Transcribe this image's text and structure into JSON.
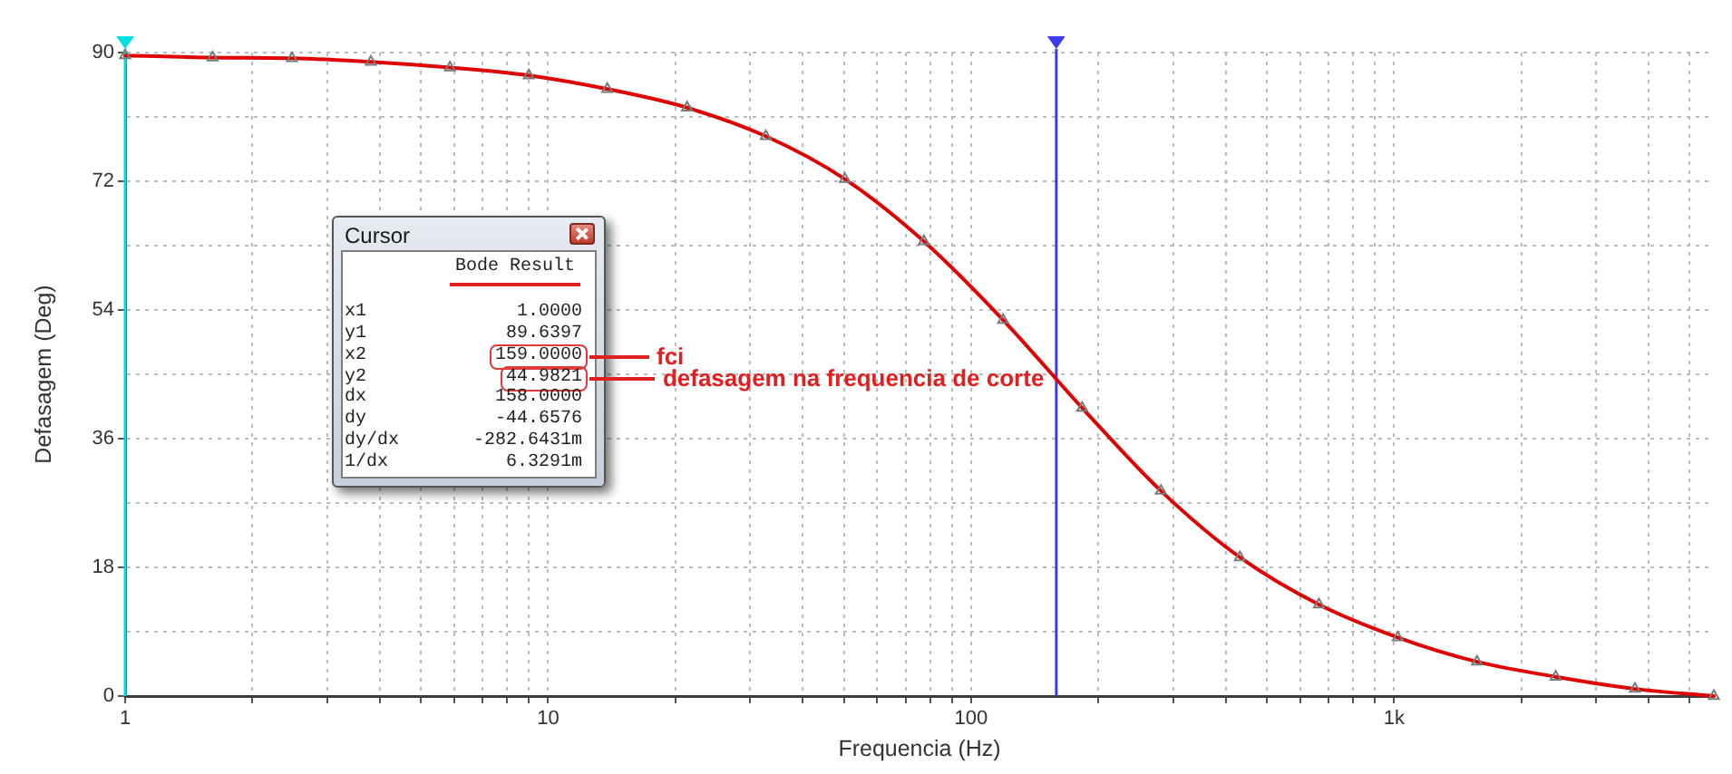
{
  "chart_data": {
    "type": "line",
    "xlabel": "Frequencia (Hz)",
    "ylabel": "Defasagem (Deg)",
    "log": "x",
    "xlim": [
      1,
      5700
    ],
    "ylim": [
      0,
      90
    ],
    "xticks": [
      1,
      {
        "value": 2,
        "label": null
      },
      {
        "value": 3,
        "label": null
      },
      {
        "value": 4,
        "label": null
      },
      {
        "value": 5,
        "label": null
      },
      {
        "value": 6,
        "label": null
      },
      {
        "value": 7,
        "label": null
      },
      {
        "value": 8,
        "label": null
      },
      {
        "value": 9,
        "label": null
      },
      10,
      {
        "value": 20,
        "label": null
      },
      {
        "value": 30,
        "label": null
      },
      {
        "value": 40,
        "label": null
      },
      {
        "value": 50,
        "label": null
      },
      {
        "value": 60,
        "label": null
      },
      {
        "value": 70,
        "label": null
      },
      {
        "value": 80,
        "label": null
      },
      {
        "value": 90,
        "label": null
      },
      100,
      {
        "value": 200,
        "label": null
      },
      {
        "value": 300,
        "label": null
      },
      {
        "value": 400,
        "label": null
      },
      {
        "value": 500,
        "label": null
      },
      {
        "value": 600,
        "label": null
      },
      {
        "value": 700,
        "label": null
      },
      {
        "value": 800,
        "label": null
      },
      {
        "value": 900,
        "label": null
      },
      {
        "value": 1000,
        "label": "1k"
      },
      {
        "value": 2000,
        "label": null
      },
      {
        "value": 3000,
        "label": null
      },
      {
        "value": 4000,
        "label": null
      },
      {
        "value": 5000,
        "label": null
      }
    ],
    "yticks": [
      0,
      {
        "value": 9,
        "label": null
      },
      18,
      {
        "value": 27,
        "label": null
      },
      36,
      {
        "value": 45,
        "label": null
      },
      54,
      {
        "value": 63,
        "label": null
      },
      72,
      {
        "value": 81,
        "label": null
      },
      90
    ],
    "grid": true,
    "legend": false,
    "marker": "triangle",
    "line_style": "solid",
    "color": "#e00000",
    "x": [
      1,
      1.61,
      2.48,
      3.81,
      5.86,
      9.0,
      13.8,
      21.3,
      32.7,
      50.3,
      77.3,
      119,
      183,
      281,
      432,
      664,
      1020,
      1570,
      2410,
      3710,
      5700
    ],
    "values": [
      89.6,
      89.3,
      89.2,
      88.7,
      87.9,
      86.8,
      84.9,
      82.3,
      78.3,
      72.3,
      63.6,
      52.6,
      40.3,
      28.7,
      19.4,
      12.8,
      8.2,
      4.8,
      2.7,
      1.0,
      0
    ],
    "ref_lines": [
      {
        "axis": "x",
        "value": 1,
        "color": "#00e0e0"
      },
      {
        "axis": "x",
        "value": 159,
        "color": "#3a3aee"
      }
    ],
    "annotations": [
      "Cursor",
      "Bode Result",
      "x1 1.0000",
      "y1 89.6397",
      "x2 159.0000",
      "y2 44.9821",
      "dx 158.0000",
      "dy -44.6576",
      "dy/dx -282.6431m",
      "1/dx 6.3291m",
      "fci",
      {
        "text": "defasagem na frequencia de corte",
        "x": 159,
        "y": 44.9821
      }
    ]
  }
}
